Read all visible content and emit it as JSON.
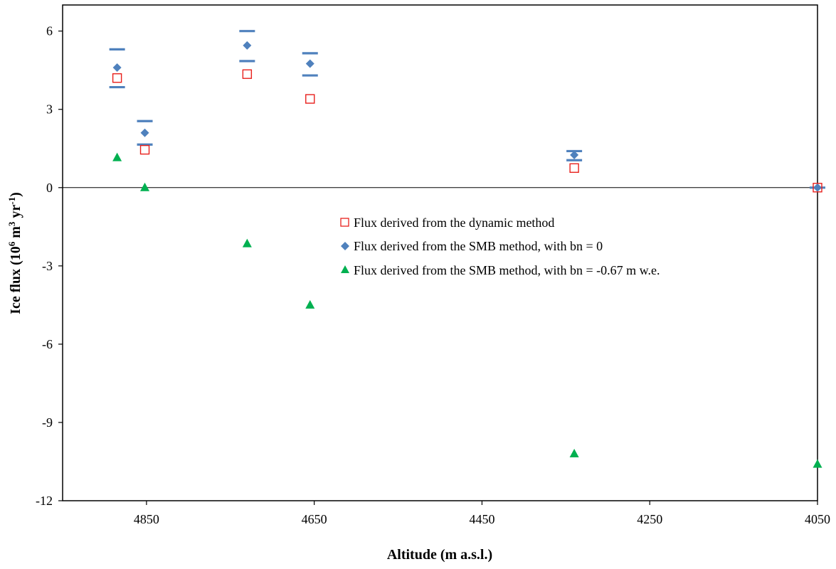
{
  "chart_data": {
    "type": "scatter",
    "xlabel": "Altitude (m a.s.l.)",
    "ylabel_main": "Ice flux (10",
    "ylabel_sup1": "6",
    "ylabel_mid": " m",
    "ylabel_sup2": "3",
    "ylabel_mid2": " yr",
    "ylabel_sup3": "-1",
    "ylabel_end": ")",
    "x_reversed": true,
    "xlim": [
      4950,
      4050
    ],
    "ylim": [
      -12,
      7
    ],
    "xticks": [
      4850,
      4650,
      4450,
      4250,
      4050
    ],
    "xtick_labels": [
      "4850",
      "4650",
      "4450",
      "4250",
      "4050"
    ],
    "yticks": [
      6,
      3,
      0,
      -3,
      -6,
      -9,
      -12
    ],
    "ytick_labels": [
      "6",
      "3",
      "0",
      "-3",
      "-6",
      "-9",
      "-12"
    ],
    "zero_line": true,
    "grid": false,
    "legend_position": "center-right",
    "series": [
      {
        "name": "Flux derived from the dynamic method",
        "marker": "open-square",
        "color": "#e8201c",
        "points": [
          {
            "x": 4885,
            "y": 4.2
          },
          {
            "x": 4852,
            "y": 1.45
          },
          {
            "x": 4730,
            "y": 4.35
          },
          {
            "x": 4655,
            "y": 3.4
          },
          {
            "x": 4340,
            "y": 0.75
          },
          {
            "x": 4050,
            "y": 0.0
          }
        ]
      },
      {
        "name": "Flux derived from the SMB method, with bn = 0",
        "marker": "diamond",
        "color": "#4f81bd",
        "points": [
          {
            "x": 4885,
            "y": 4.6,
            "err_low": 3.85,
            "err_high": 5.3
          },
          {
            "x": 4852,
            "y": 2.1,
            "err_low": 1.65,
            "err_high": 2.55
          },
          {
            "x": 4730,
            "y": 5.45,
            "err_low": 4.85,
            "err_high": 6.0
          },
          {
            "x": 4655,
            "y": 4.75,
            "err_low": 4.3,
            "err_high": 5.15
          },
          {
            "x": 4340,
            "y": 1.25,
            "err_low": 1.05,
            "err_high": 1.4
          },
          {
            "x": 4050,
            "y": 0.0,
            "err_low": 0.0,
            "err_high": 0.0
          }
        ]
      },
      {
        "name": "Flux derived from the SMB method, with bn = -0.67 m w.e.",
        "marker": "triangle",
        "color": "#00b050",
        "points": [
          {
            "x": 4885,
            "y": 1.15
          },
          {
            "x": 4852,
            "y": 0.0
          },
          {
            "x": 4730,
            "y": -2.15
          },
          {
            "x": 4655,
            "y": -4.5
          },
          {
            "x": 4340,
            "y": -10.2
          },
          {
            "x": 4050,
            "y": -10.6
          }
        ]
      }
    ]
  }
}
